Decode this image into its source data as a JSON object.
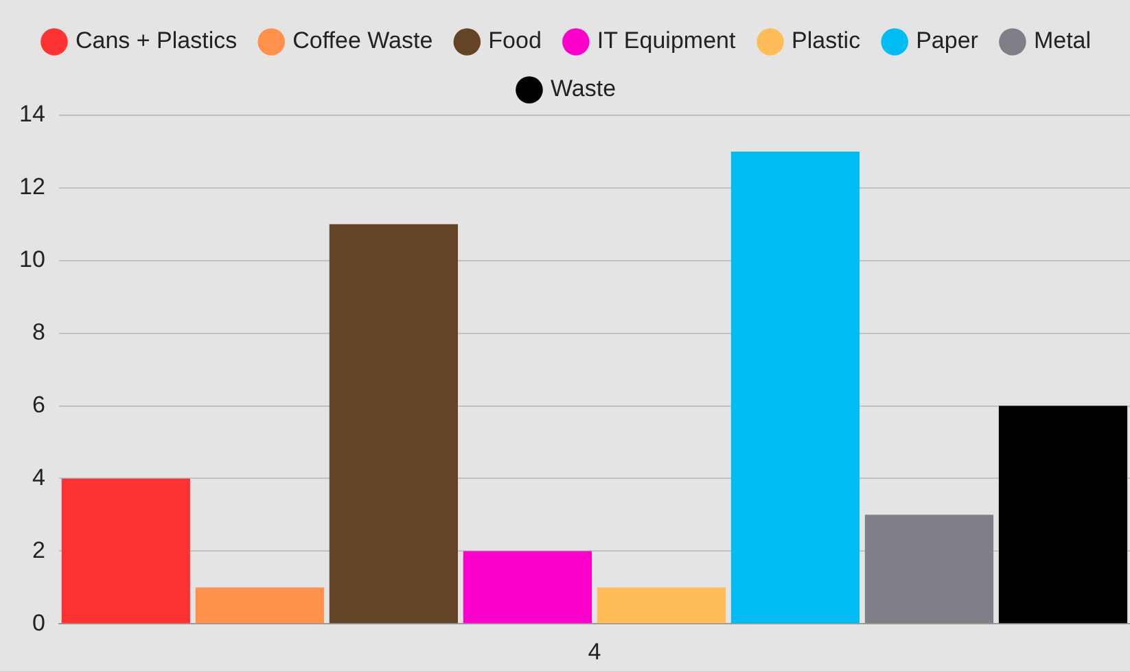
{
  "chart_data": {
    "type": "bar",
    "categories": [
      "4"
    ],
    "series": [
      {
        "name": "Cans + Plastics",
        "color": "#ff3333",
        "values": [
          4
        ]
      },
      {
        "name": "Coffee Waste",
        "color": "#ff914d",
        "values": [
          1
        ]
      },
      {
        "name": "Food",
        "color": "#654326",
        "values": [
          11
        ]
      },
      {
        "name": "IT Equipment",
        "color": "#ff00cc",
        "values": [
          2
        ]
      },
      {
        "name": "Plastic",
        "color": "#ffbd59",
        "values": [
          1
        ]
      },
      {
        "name": "Paper",
        "color": "#00bcf2",
        "values": [
          13
        ]
      },
      {
        "name": "Metal",
        "color": "#7f7f87",
        "values": [
          3
        ]
      },
      {
        "name": "Waste",
        "color": "#000000",
        "values": [
          6
        ]
      }
    ],
    "ylim": [
      0,
      14
    ],
    "yticks": [
      0,
      2,
      4,
      6,
      8,
      10,
      12,
      14
    ],
    "grid": "y",
    "legend": "top"
  }
}
